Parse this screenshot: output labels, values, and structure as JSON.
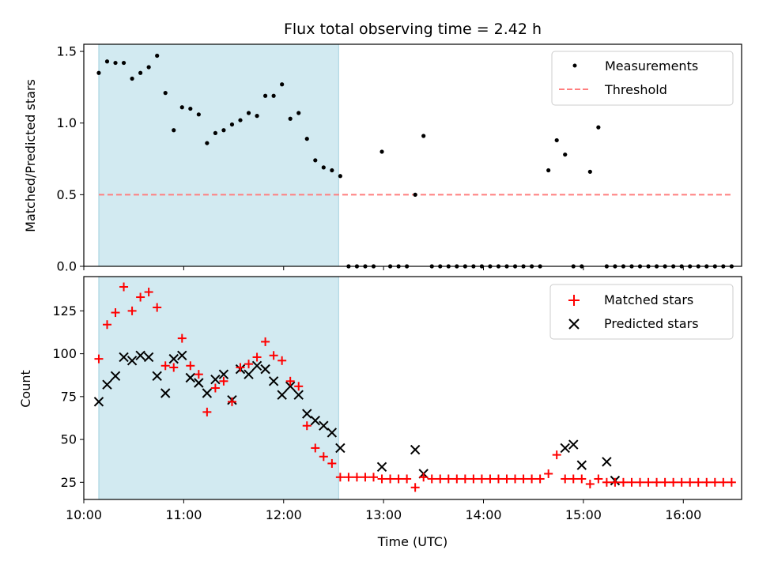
{
  "chart_data": [
    {
      "type": "scatter",
      "title": "Flux total observing time = 2.42 h",
      "xlabel": "",
      "ylabel": "Matched/Predicted stars",
      "xlim": [
        "10:00",
        "16:35"
      ],
      "ylim": [
        0,
        1.55
      ],
      "yticks": [
        "0.0",
        "0.5",
        "1.0",
        "1.5"
      ],
      "grid": false,
      "legend_position": "top-right",
      "shaded_interval": {
        "start": "10:09",
        "end": "12:33",
        "color": "#add8e6"
      },
      "series": [
        {
          "name": "Measurements",
          "marker": "dot",
          "color": "#000000",
          "x": [
            "10:09",
            "10:14",
            "10:19",
            "10:24",
            "10:29",
            "10:34",
            "10:39",
            "10:44",
            "10:49",
            "10:54",
            "10:59",
            "11:04",
            "11:09",
            "11:14",
            "11:19",
            "11:24",
            "11:29",
            "11:34",
            "11:39",
            "11:44",
            "11:49",
            "11:54",
            "11:59",
            "12:04",
            "12:09",
            "12:14",
            "12:19",
            "12:24",
            "12:29",
            "12:34",
            "12:39",
            "12:44",
            "12:49",
            "12:54",
            "12:59",
            "13:04",
            "13:09",
            "13:14",
            "13:19",
            "13:24",
            "13:29",
            "13:34",
            "13:39",
            "13:44",
            "13:49",
            "13:54",
            "13:59",
            "14:04",
            "14:09",
            "14:14",
            "14:19",
            "14:24",
            "14:29",
            "14:34",
            "14:39",
            "14:44",
            "14:49",
            "14:54",
            "14:59",
            "15:04",
            "15:09",
            "15:14",
            "15:19",
            "15:24",
            "15:29",
            "15:34",
            "15:39",
            "15:44",
            "15:49",
            "15:54",
            "15:59",
            "16:04",
            "16:09",
            "16:14",
            "16:19",
            "16:24",
            "16:29"
          ],
          "y": [
            1.35,
            1.43,
            1.42,
            1.42,
            1.31,
            1.35,
            1.39,
            1.47,
            1.21,
            0.95,
            1.11,
            1.1,
            1.06,
            0.86,
            0.93,
            0.95,
            0.99,
            1.02,
            1.07,
            1.05,
            1.19,
            1.19,
            1.27,
            1.03,
            1.07,
            0.89,
            0.74,
            0.69,
            0.67,
            0.63,
            0,
            0,
            0,
            0,
            0.8,
            0,
            0,
            0,
            0.5,
            0.91,
            0,
            0,
            0,
            0,
            0,
            0,
            0,
            0,
            0,
            0,
            0,
            0,
            0,
            0,
            0.67,
            0.88,
            0.78,
            0,
            0,
            0.66,
            0.97,
            0,
            0,
            0,
            0,
            0,
            0,
            0,
            0,
            0,
            0,
            0,
            0,
            0,
            0,
            0,
            0
          ]
        },
        {
          "name": "Threshold",
          "style": "dashed",
          "color": "#ff7f7f",
          "x": [
            "10:09",
            "16:29"
          ],
          "y": [
            0.5,
            0.5
          ]
        }
      ]
    },
    {
      "type": "scatter",
      "title": "",
      "xlabel": "Time (UTC)",
      "ylabel": "Count",
      "xlim": [
        "10:00",
        "16:35"
      ],
      "ylim": [
        15,
        145
      ],
      "yticks": [
        "25",
        "50",
        "75",
        "100",
        "125"
      ],
      "xticks": [
        "10:00",
        "11:00",
        "12:00",
        "13:00",
        "14:00",
        "15:00",
        "16:00"
      ],
      "grid": false,
      "legend_position": "top-right",
      "shaded_interval": {
        "start": "10:09",
        "end": "12:33",
        "color": "#add8e6"
      },
      "series": [
        {
          "name": "Matched stars",
          "marker": "plus",
          "color": "#ff0000",
          "x": [
            "10:09",
            "10:14",
            "10:19",
            "10:24",
            "10:29",
            "10:34",
            "10:39",
            "10:44",
            "10:49",
            "10:54",
            "10:59",
            "11:04",
            "11:09",
            "11:14",
            "11:19",
            "11:24",
            "11:29",
            "11:34",
            "11:39",
            "11:44",
            "11:49",
            "11:54",
            "11:59",
            "12:04",
            "12:09",
            "12:14",
            "12:19",
            "12:24",
            "12:29",
            "12:34",
            "12:39",
            "12:44",
            "12:49",
            "12:54",
            "12:59",
            "13:04",
            "13:09",
            "13:14",
            "13:19",
            "13:24",
            "13:29",
            "13:34",
            "13:39",
            "13:44",
            "13:49",
            "13:54",
            "13:59",
            "14:04",
            "14:09",
            "14:14",
            "14:19",
            "14:24",
            "14:29",
            "14:34",
            "14:39",
            "14:44",
            "14:49",
            "14:54",
            "14:59",
            "15:04",
            "15:09",
            "15:14",
            "15:19",
            "15:24",
            "15:29",
            "15:34",
            "15:39",
            "15:44",
            "15:49",
            "15:54",
            "15:59",
            "16:04",
            "16:09",
            "16:14",
            "16:19",
            "16:24",
            "16:29"
          ],
          "y": [
            97,
            117,
            124,
            139,
            125,
            133,
            136,
            127,
            93,
            92,
            109,
            93,
            88,
            66,
            80,
            84,
            72,
            92,
            94,
            98,
            107,
            99,
            96,
            84,
            81,
            58,
            45,
            40,
            36,
            28,
            28,
            28,
            28,
            28,
            27,
            27,
            27,
            27,
            22,
            28,
            27,
            27,
            27,
            27,
            27,
            27,
            27,
            27,
            27,
            27,
            27,
            27,
            27,
            27,
            30,
            41,
            27,
            27,
            27,
            24,
            27,
            25,
            25,
            25,
            25,
            25,
            25,
            25,
            25,
            25,
            25,
            25,
            25,
            25,
            25,
            25,
            25
          ]
        },
        {
          "name": "Predicted stars",
          "marker": "x",
          "color": "#000000",
          "x": [
            "10:09",
            "10:14",
            "10:19",
            "10:24",
            "10:29",
            "10:34",
            "10:39",
            "10:44",
            "10:49",
            "10:54",
            "10:59",
            "11:04",
            "11:09",
            "11:14",
            "11:19",
            "11:24",
            "11:29",
            "11:34",
            "11:39",
            "11:44",
            "11:49",
            "11:54",
            "11:59",
            "12:04",
            "12:09",
            "12:14",
            "12:19",
            "12:24",
            "12:29",
            "12:34",
            "12:59",
            "13:19",
            "13:24",
            "14:49",
            "14:54",
            "14:59",
            "15:14",
            "15:19"
          ],
          "y": [
            72,
            82,
            87,
            98,
            96,
            99,
            98,
            87,
            77,
            97,
            99,
            86,
            83,
            77,
            85,
            88,
            73,
            91,
            88,
            93,
            91,
            84,
            76,
            81,
            76,
            65,
            61,
            58,
            54,
            45,
            34,
            44,
            30,
            45,
            47,
            35,
            37,
            26
          ]
        }
      ]
    }
  ]
}
